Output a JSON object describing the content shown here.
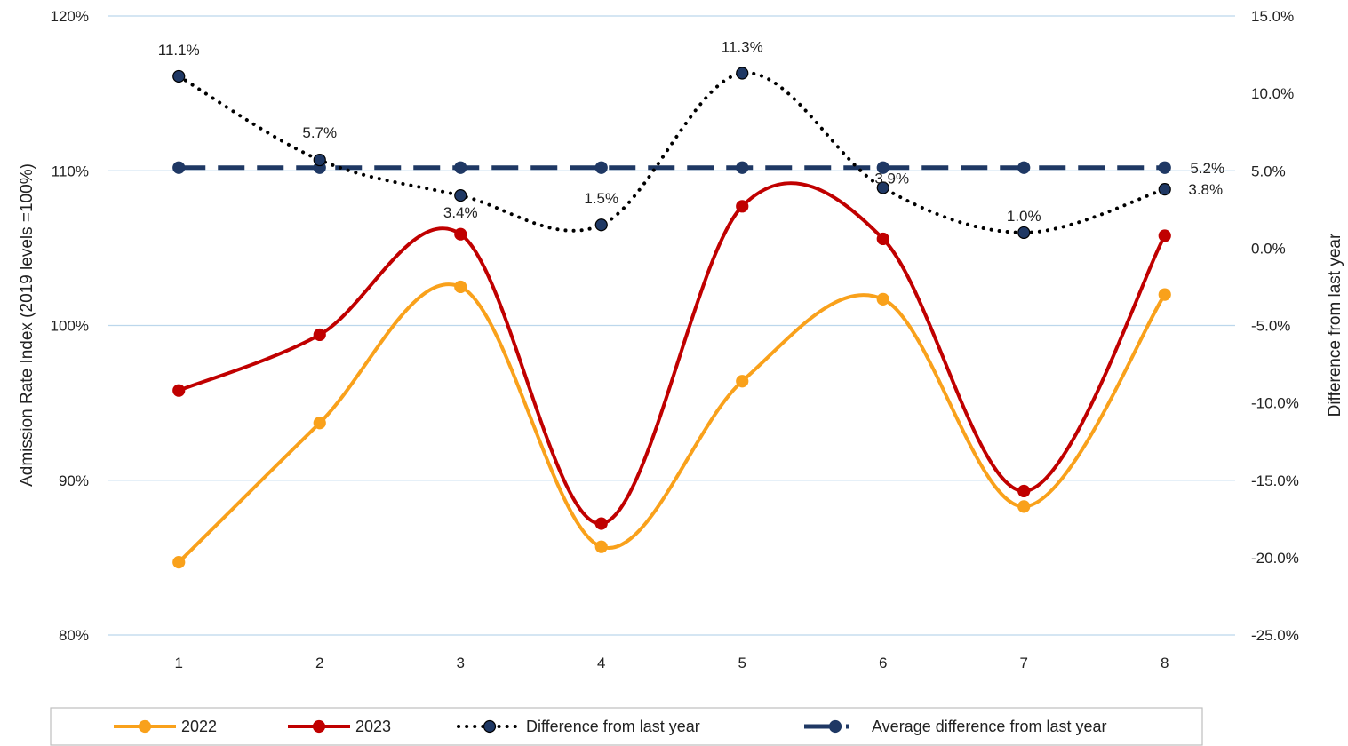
{
  "chart_data": {
    "type": "line",
    "x": [
      "1",
      "2",
      "3",
      "4",
      "5",
      "6",
      "7",
      "8"
    ],
    "ylabel": "Admission Rate Index (2019 levels =100%)",
    "y2label": "Difference from last year",
    "ylim": [
      80,
      120
    ],
    "y2lim": [
      -25,
      15
    ],
    "yticks": [
      "80%",
      "90%",
      "100%",
      "110%",
      "120%"
    ],
    "y2ticks": [
      "-25.0%",
      "-20.0%",
      "-15.0%",
      "-10.0%",
      "-5.0%",
      "0.0%",
      "5.0%",
      "10.0%",
      "15.0%"
    ],
    "grid": true,
    "legend_position": "bottom",
    "series": [
      {
        "name": "2022",
        "axis": "left",
        "style": "smooth-solid",
        "color": "#F9A11B",
        "values": [
          84.7,
          93.7,
          102.5,
          85.7,
          96.4,
          101.7,
          88.3,
          102.0
        ]
      },
      {
        "name": "2023",
        "axis": "left",
        "style": "smooth-solid",
        "color": "#C00000",
        "values": [
          95.8,
          99.4,
          105.9,
          87.2,
          107.7,
          105.6,
          89.3,
          105.8
        ]
      },
      {
        "name": "Difference from last year",
        "axis": "right",
        "style": "smooth-dotted",
        "color": "#000000",
        "marker_color": "#1F3864",
        "values": [
          11.1,
          5.7,
          3.4,
          1.5,
          11.3,
          3.9,
          1.0,
          3.8
        ],
        "labels": [
          "11.1%",
          "5.7%",
          "3.4%",
          "1.5%",
          "11.3%",
          "3.9%",
          "1.0%",
          "3.8%"
        ]
      },
      {
        "name": "Average difference from last year",
        "axis": "right",
        "style": "dashed",
        "color": "#1F3864",
        "values": [
          5.2,
          5.2,
          5.2,
          5.2,
          5.2,
          5.2,
          5.2,
          5.2
        ],
        "labels": [
          "5.2%"
        ]
      }
    ]
  }
}
